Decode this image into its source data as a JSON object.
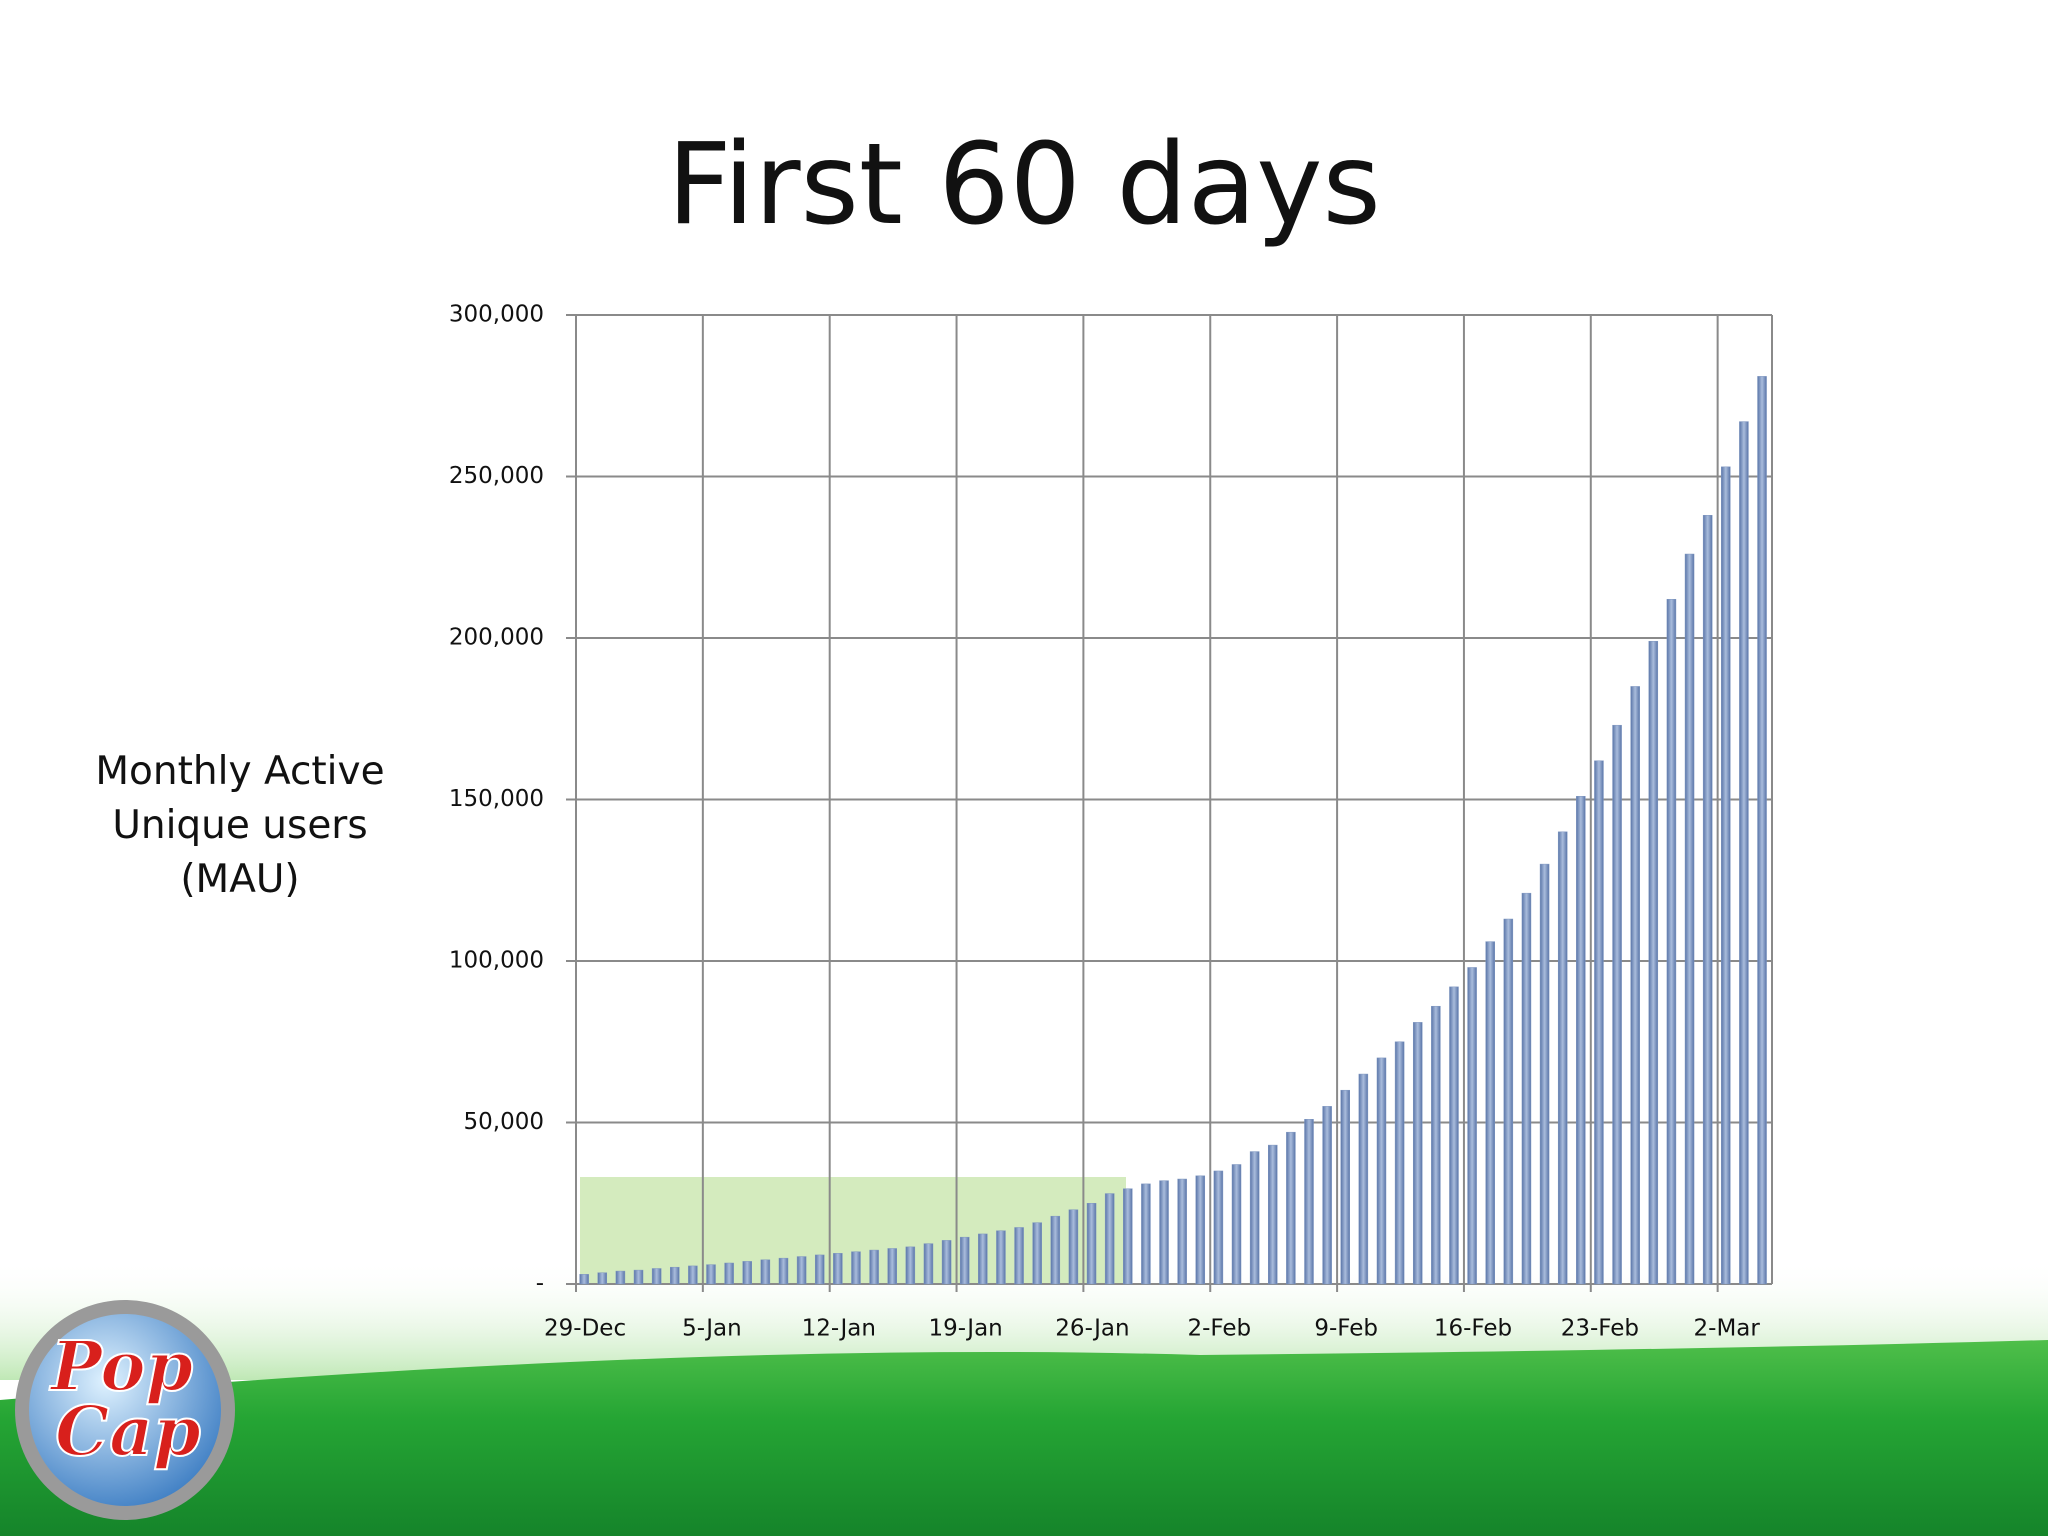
{
  "chart_data": {
    "type": "bar",
    "title": "First 60 days",
    "y_label": "Monthly Active Unique users (MAU)",
    "categories": [
      "29-Dec",
      null,
      null,
      null,
      null,
      null,
      null,
      "5-Jan",
      null,
      null,
      null,
      null,
      null,
      null,
      "12-Jan",
      null,
      null,
      null,
      null,
      null,
      null,
      "19-Jan",
      null,
      null,
      null,
      null,
      null,
      null,
      "26-Jan",
      null,
      null,
      null,
      null,
      null,
      null,
      "2-Feb",
      null,
      null,
      null,
      null,
      null,
      null,
      "9-Feb",
      null,
      null,
      null,
      null,
      null,
      null,
      "16-Feb",
      null,
      null,
      null,
      null,
      null,
      null,
      "23-Feb",
      null,
      null,
      null,
      null,
      null,
      null,
      "2-Mar",
      null,
      null
    ],
    "values": [
      3000,
      3500,
      4000,
      4300,
      4800,
      5200,
      5600,
      6000,
      6500,
      7000,
      7500,
      8000,
      8500,
      9000,
      9500,
      10000,
      10500,
      11000,
      11500,
      12500,
      13500,
      14500,
      15500,
      16500,
      17500,
      19000,
      21000,
      23000,
      25000,
      28000,
      29500,
      31000,
      32000,
      32500,
      33500,
      35000,
      37000,
      41000,
      43000,
      47000,
      51000,
      55000,
      60000,
      65000,
      70000,
      75000,
      81000,
      86000,
      92000,
      98000,
      106000,
      113000,
      121000,
      130000,
      140000,
      151000,
      162000,
      173000,
      185000,
      199000,
      212000,
      226000,
      238000,
      253000,
      267000,
      281000
    ],
    "color": "#7f97c0",
    "ylim": [
      0,
      300000
    ],
    "yticks": [
      {
        "value": 0,
        "label": "-"
      },
      {
        "value": 50000,
        "label": "50,000"
      },
      {
        "value": 100000,
        "label": "100,000"
      },
      {
        "value": 150000,
        "label": "150,000"
      },
      {
        "value": 200000,
        "label": "200,000"
      },
      {
        "value": 250000,
        "label": "250,000"
      },
      {
        "value": 300000,
        "label": "300,000"
      }
    ],
    "grid": true
  },
  "logo": [
    "Pop",
    "Cap"
  ]
}
